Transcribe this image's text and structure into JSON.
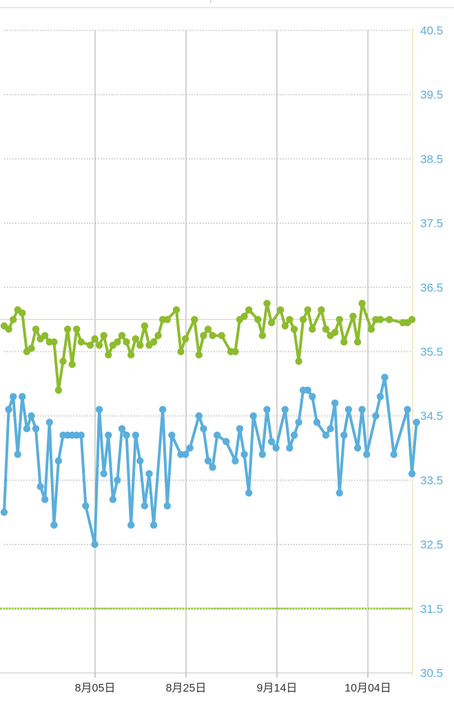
{
  "chart_data": {
    "type": "line",
    "x_axis_ticks": [
      "8月05日",
      "8月25日",
      "9月14日",
      "10月04日"
    ],
    "y_axis_ticks": [
      "40.5",
      "39.5",
      "38.5",
      "37.5",
      "36.5",
      "35.5",
      "34.5",
      "33.5",
      "32.5",
      "31.5",
      "30.5"
    ],
    "ylim": [
      30.5,
      40.5
    ],
    "xlim": [
      0,
      90
    ],
    "grid": true,
    "reference_lines": {
      "upper": 36.0,
      "lower": 31.5
    },
    "colors": {
      "upper_series": "#8dbb2e",
      "lower_series": "#5aaedb",
      "ref_upper": "#f2d6a0",
      "ref_lower": "#9ccc3c",
      "grid": "#999999",
      "vgrid": "#aaaaaa",
      "ytick": "#5aaedb"
    },
    "series": [
      {
        "color": "#8dbb2e",
        "points": [
          [
            0,
            35.9
          ],
          [
            1,
            35.85
          ],
          [
            2,
            36.0
          ],
          [
            3,
            36.15
          ],
          [
            4,
            36.1
          ],
          [
            5,
            35.5
          ],
          [
            6,
            35.55
          ],
          [
            7,
            35.85
          ],
          [
            8,
            35.7
          ],
          [
            9,
            35.75
          ],
          [
            10,
            35.65
          ],
          [
            11,
            35.65
          ],
          [
            12,
            34.9
          ],
          [
            13,
            35.35
          ],
          [
            14,
            35.85
          ],
          [
            15,
            35.3
          ],
          [
            16,
            35.85
          ],
          [
            17,
            35.65
          ],
          [
            19,
            35.6
          ],
          [
            20,
            35.7
          ],
          [
            21,
            35.6
          ],
          [
            22,
            35.75
          ],
          [
            23,
            35.45
          ],
          [
            24,
            35.6
          ],
          [
            25,
            35.65
          ],
          [
            26,
            35.75
          ],
          [
            27,
            35.65
          ],
          [
            28,
            35.45
          ],
          [
            29,
            35.7
          ],
          [
            30,
            35.6
          ],
          [
            31,
            35.9
          ],
          [
            32,
            35.6
          ],
          [
            33,
            35.65
          ],
          [
            34,
            35.75
          ],
          [
            35,
            36.0
          ],
          [
            36,
            36.0
          ],
          [
            38,
            36.15
          ],
          [
            39,
            35.5
          ],
          [
            40,
            35.7
          ],
          [
            42,
            36.0
          ],
          [
            43,
            35.45
          ],
          [
            44,
            35.75
          ],
          [
            45,
            35.85
          ],
          [
            46,
            35.75
          ],
          [
            48,
            35.75
          ],
          [
            50,
            35.5
          ],
          [
            51,
            35.5
          ],
          [
            52,
            36.0
          ],
          [
            53,
            36.05
          ],
          [
            54,
            36.15
          ],
          [
            56,
            36.0
          ],
          [
            57,
            35.75
          ],
          [
            58,
            36.25
          ],
          [
            59,
            35.95
          ],
          [
            61,
            36.15
          ],
          [
            62,
            35.9
          ],
          [
            63,
            36.0
          ],
          [
            64,
            35.85
          ],
          [
            65,
            35.35
          ],
          [
            66,
            36.0
          ],
          [
            67,
            36.15
          ],
          [
            68,
            35.85
          ],
          [
            70,
            36.15
          ],
          [
            71,
            35.85
          ],
          [
            72,
            35.75
          ],
          [
            73,
            35.8
          ],
          [
            74,
            36.0
          ],
          [
            75,
            35.65
          ],
          [
            77,
            36.05
          ],
          [
            78,
            35.65
          ],
          [
            79,
            36.25
          ],
          [
            81,
            35.85
          ],
          [
            82,
            36.0
          ],
          [
            83,
            36.0
          ],
          [
            85,
            36.0
          ],
          [
            88,
            35.95
          ],
          [
            89,
            35.95
          ],
          [
            90,
            36.0
          ]
        ]
      },
      {
        "color": "#5aaedb",
        "points": [
          [
            0,
            33.0
          ],
          [
            1,
            34.6
          ],
          [
            2,
            34.8
          ],
          [
            3,
            33.9
          ],
          [
            4,
            34.8
          ],
          [
            5,
            34.3
          ],
          [
            6,
            34.5
          ],
          [
            7,
            34.3
          ],
          [
            8,
            33.4
          ],
          [
            9,
            33.2
          ],
          [
            10,
            34.4
          ],
          [
            11,
            32.8
          ],
          [
            12,
            33.8
          ],
          [
            13,
            34.2
          ],
          [
            14,
            34.2
          ],
          [
            15,
            34.2
          ],
          [
            16,
            34.2
          ],
          [
            17,
            34.2
          ],
          [
            18,
            33.1
          ],
          [
            20,
            32.5
          ],
          [
            21,
            34.6
          ],
          [
            22,
            33.6
          ],
          [
            23,
            34.2
          ],
          [
            24,
            33.2
          ],
          [
            25,
            33.5
          ],
          [
            26,
            34.3
          ],
          [
            27,
            34.2
          ],
          [
            28,
            32.8
          ],
          [
            29,
            34.2
          ],
          [
            30,
            33.8
          ],
          [
            31,
            33.1
          ],
          [
            32,
            33.6
          ],
          [
            33,
            32.8
          ],
          [
            35,
            34.6
          ],
          [
            36,
            33.1
          ],
          [
            37,
            34.2
          ],
          [
            39,
            33.9
          ],
          [
            40,
            33.9
          ],
          [
            41,
            34.0
          ],
          [
            43,
            34.5
          ],
          [
            44,
            34.3
          ],
          [
            45,
            33.8
          ],
          [
            46,
            33.7
          ],
          [
            47,
            34.2
          ],
          [
            49,
            34.1
          ],
          [
            51,
            33.8
          ],
          [
            52,
            34.3
          ],
          [
            53,
            33.9
          ],
          [
            54,
            33.3
          ],
          [
            55,
            34.5
          ],
          [
            57,
            33.9
          ],
          [
            58,
            34.6
          ],
          [
            59,
            34.1
          ],
          [
            60,
            34.0
          ],
          [
            62,
            34.6
          ],
          [
            63,
            34.0
          ],
          [
            64,
            34.2
          ],
          [
            65,
            34.4
          ],
          [
            66,
            34.9
          ],
          [
            67,
            34.9
          ],
          [
            68,
            34.8
          ],
          [
            69,
            34.4
          ],
          [
            71,
            34.2
          ],
          [
            72,
            34.3
          ],
          [
            73,
            34.7
          ],
          [
            74,
            33.3
          ],
          [
            75,
            34.2
          ],
          [
            76,
            34.6
          ],
          [
            78,
            34.0
          ],
          [
            79,
            34.6
          ],
          [
            80,
            33.9
          ],
          [
            82,
            34.5
          ],
          [
            83,
            34.8
          ],
          [
            84,
            35.1
          ],
          [
            86,
            33.9
          ],
          [
            89,
            34.6
          ],
          [
            90,
            33.6
          ],
          [
            91,
            34.4
          ]
        ]
      }
    ]
  }
}
